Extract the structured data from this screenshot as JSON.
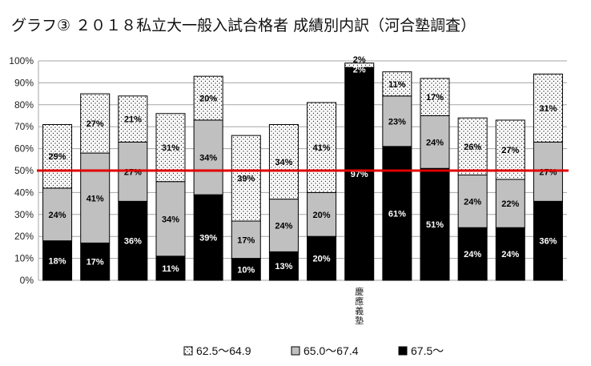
{
  "chart_data": {
    "type": "bar",
    "stacked": true,
    "title": "グラフ③ ２０１８私立大一般入試合格者 成績別内訳（河合塾調査）",
    "categories": [
      "",
      "",
      "",
      "",
      "",
      "",
      "",
      "",
      "慶應義塾",
      "",
      "",
      "",
      "",
      ""
    ],
    "series": [
      {
        "name": "67.5～",
        "color": "#000000",
        "pattern": "solid",
        "values": [
          18,
          17,
          36,
          11,
          39,
          10,
          13,
          20,
          97,
          61,
          51,
          24,
          24,
          36
        ],
        "labels": [
          "18%",
          "17%",
          "36%",
          "11%",
          "39%",
          "10%",
          "13%",
          "20%",
          "97%",
          "61%",
          "51%",
          "24%",
          "24%",
          "36%"
        ]
      },
      {
        "name": "65.0～67.4",
        "color": "#c0c0c0",
        "pattern": "solid",
        "values": [
          24,
          41,
          27,
          34,
          34,
          17,
          24,
          20,
          0,
          23,
          24,
          24,
          22,
          27
        ],
        "labels": [
          "24%",
          "41%",
          "27%",
          "34%",
          "34%",
          "17%",
          "24%",
          "20%",
          "",
          "23%",
          "24%",
          "24%",
          "22%",
          "27%"
        ]
      },
      {
        "name": "62.5～64.9",
        "color": "#ffffff",
        "pattern": "dots",
        "values": [
          29,
          27,
          21,
          31,
          20,
          39,
          34,
          41,
          2,
          11,
          17,
          26,
          27,
          31
        ],
        "labels": [
          "29%",
          "27%",
          "21%",
          "31%",
          "20%",
          "39%",
          "34%",
          "41%",
          "2%",
          "11%",
          "17%",
          "26%",
          "27%",
          "31%"
        ]
      }
    ],
    "extra_labels": [
      {
        "index": 8,
        "text": "2%"
      }
    ],
    "ylim": [
      0,
      100
    ],
    "yticks": [
      "0%",
      "10%",
      "20%",
      "30%",
      "40%",
      "50%",
      "60%",
      "70%",
      "80%",
      "90%",
      "100%"
    ],
    "reference_line": {
      "value": 50,
      "color": "#e00000"
    },
    "grid": true,
    "legend": {
      "position": "bottom",
      "entries": [
        {
          "label": "62.5～64.9",
          "pattern": "dots"
        },
        {
          "label": "65.0～67.4",
          "pattern": "gray"
        },
        {
          "label": "67.5～",
          "pattern": "black"
        }
      ]
    }
  }
}
